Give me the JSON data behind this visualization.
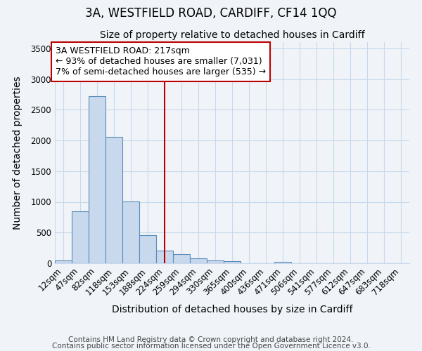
{
  "title": "3A, WESTFIELD ROAD, CARDIFF, CF14 1QQ",
  "subtitle": "Size of property relative to detached houses in Cardiff",
  "xlabel": "Distribution of detached houses by size in Cardiff",
  "ylabel": "Number of detached properties",
  "categories": [
    "12sqm",
    "47sqm",
    "82sqm",
    "118sqm",
    "153sqm",
    "188sqm",
    "224sqm",
    "259sqm",
    "294sqm",
    "330sqm",
    "365sqm",
    "400sqm",
    "436sqm",
    "471sqm",
    "506sqm",
    "541sqm",
    "577sqm",
    "612sqm",
    "647sqm",
    "683sqm",
    "718sqm"
  ],
  "values": [
    50,
    850,
    2720,
    2060,
    1010,
    460,
    210,
    145,
    75,
    50,
    30,
    0,
    0,
    25,
    0,
    0,
    0,
    0,
    0,
    0,
    0
  ],
  "bar_color": "#c8d8ed",
  "bar_edge_color": "#5b8db8",
  "bar_width": 1.0,
  "ylim": [
    0,
    3600
  ],
  "yticks": [
    0,
    500,
    1000,
    1500,
    2000,
    2500,
    3000,
    3500
  ],
  "vline_x": 6.0,
  "vline_color": "#bb0000",
  "annotation_box_line1": "3A WESTFIELD ROAD: 217sqm",
  "annotation_box_line2": "← 93% of detached houses are smaller (7,031)",
  "annotation_box_line3": "7% of semi-detached houses are larger (535) →",
  "annotation_box_color": "#bb0000",
  "annotation_box_fill": "#ffffff",
  "bg_color": "#f0f4f8",
  "plot_bg_color": "#f0f4f8",
  "grid_color": "#c8d8ed",
  "footer1": "Contains HM Land Registry data © Crown copyright and database right 2024.",
  "footer2": "Contains public sector information licensed under the Open Government Licence v3.0.",
  "title_fontsize": 12,
  "subtitle_fontsize": 10,
  "axis_label_fontsize": 10,
  "tick_fontsize": 8.5,
  "annotation_fontsize": 9,
  "footer_fontsize": 7.5
}
